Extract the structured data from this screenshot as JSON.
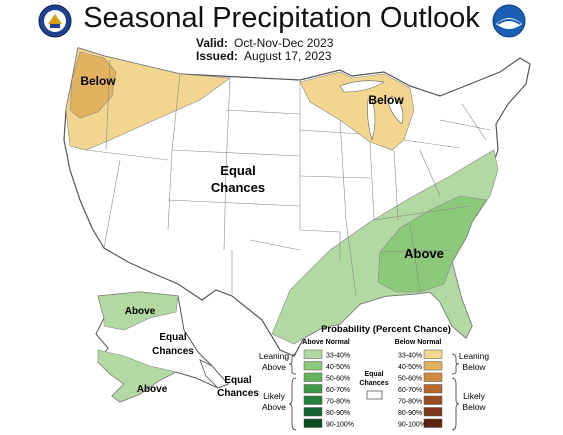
{
  "header": {
    "title": "Seasonal Precipitation Outlook",
    "valid_label": "Valid:",
    "valid_value": "Oct-Nov-Dec 2023",
    "issued_label": "Issued:",
    "issued_value": "August 17, 2023"
  },
  "logos": {
    "left": "doc-seal-icon",
    "right": "noaa-logo-icon"
  },
  "map_labels": {
    "below_west": "Below",
    "below_great_lakes": "Below",
    "equal_chances_1": "Equal",
    "equal_chances_2": "Chances",
    "above_southeast": "Above",
    "alaska_above_north": "Above",
    "alaska_equal_1": "Equal",
    "alaska_equal_2": "Chances",
    "alaska_above_south": "Above",
    "panhandle_equal_1": "Equal",
    "panhandle_equal_2": "Chances"
  },
  "legend": {
    "title": "Probability (Percent Chance)",
    "above_header": "Above Normal",
    "below_header": "Below Normal",
    "equal_label_1": "Equal",
    "equal_label_2": "Chances",
    "leaning_above_1": "Leaning",
    "leaning_above_2": "Above",
    "likely_above_1": "Likely",
    "likely_above_2": "Above",
    "leaning_below_1": "Leaning",
    "leaning_below_2": "Below",
    "likely_below_1": "Likely",
    "likely_below_2": "Below",
    "above_ranges": [
      "33-40%",
      "40-50%",
      "50-60%",
      "60-70%",
      "70-80%",
      "80-90%",
      "90-100%"
    ],
    "below_ranges": [
      "33-40%",
      "40-50%",
      "50-60%",
      "60-70%",
      "70-80%",
      "80-90%",
      "90-100%"
    ],
    "above_colors": [
      "#b3d9a2",
      "#8cc97a",
      "#62b35a",
      "#3c9a47",
      "#24803a",
      "#13662e",
      "#0a4d22"
    ],
    "below_colors": [
      "#f2d58e",
      "#e3b25e",
      "#d08a3e",
      "#b8682d",
      "#9a4c22",
      "#7d361a",
      "#5e2412"
    ]
  },
  "colors": {
    "below_33_40": "#f2d58e",
    "below_40_50": "#e3b25e",
    "above_33_40": "#b3d9a2",
    "above_40_50": "#8cc97a",
    "state_lines": "#888888"
  }
}
